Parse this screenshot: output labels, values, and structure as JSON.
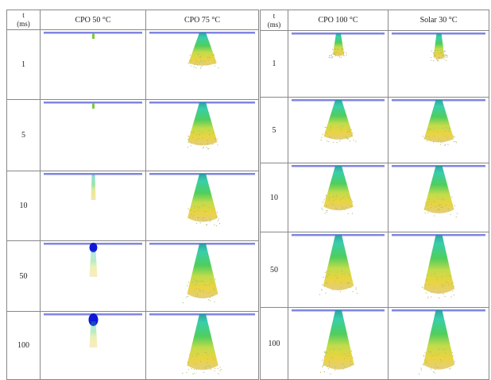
{
  "tables": [
    {
      "header": [
        "t",
        "(ms)",
        "CPO 50 °C",
        "CPO 75 °C"
      ],
      "rows": [
        "1",
        "5",
        "10",
        "50",
        "100"
      ]
    },
    {
      "header": [
        "t",
        "(ms)",
        "CPO 100 °C",
        "Solar 30 °C"
      ],
      "rows": [
        "1",
        "5",
        "10",
        "50",
        "100"
      ]
    }
  ]
}
